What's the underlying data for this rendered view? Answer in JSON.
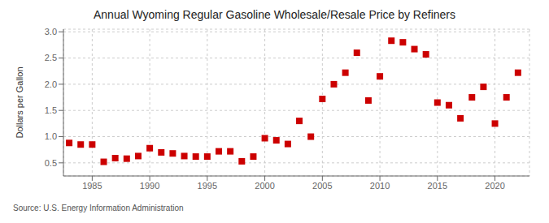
{
  "chart_data": {
    "type": "scatter",
    "title": "Annual Wyoming Regular Gasoline Wholesale/Resale Price by Refiners",
    "y_label": "Dollars per Gallon",
    "annotations": [
      "Source: U.S. Energy Information Administration"
    ],
    "x": [
      1983,
      1984,
      1985,
      1986,
      1987,
      1988,
      1989,
      1990,
      1991,
      1992,
      1993,
      1994,
      1995,
      1996,
      1997,
      1998,
      1999,
      2000,
      2001,
      2002,
      2003,
      2004,
      2005,
      2006,
      2007,
      2008,
      2009,
      2010,
      2011,
      2012,
      2013,
      2014,
      2015,
      2016,
      2017,
      2018,
      2019,
      2020,
      2021,
      2022
    ],
    "values": [
      0.88,
      0.85,
      0.85,
      0.52,
      0.59,
      0.58,
      0.63,
      0.78,
      0.7,
      0.68,
      0.63,
      0.62,
      0.62,
      0.72,
      0.72,
      0.53,
      0.62,
      0.97,
      0.93,
      0.86,
      1.3,
      1.0,
      1.72,
      2.0,
      2.22,
      2.6,
      1.69,
      2.15,
      2.83,
      2.8,
      2.67,
      2.57,
      1.65,
      1.6,
      1.35,
      1.75,
      1.95,
      1.25,
      1.75,
      2.22
    ],
    "color": "#cc0000",
    "marker": "square",
    "xlim": [
      1982.5,
      2023
    ],
    "ylim": [
      0.25,
      3.05
    ],
    "xticks": [
      1985,
      1990,
      1995,
      2000,
      2005,
      2010,
      2015,
      2020
    ],
    "yticks": [
      0.5,
      {
        "value": 1.0,
        "label": "1.0"
      },
      1.5,
      {
        "value": 2.0,
        "label": "2.0"
      },
      2.5,
      {
        "value": 3.0,
        "label": "3.0"
      }
    ],
    "grid": true
  }
}
